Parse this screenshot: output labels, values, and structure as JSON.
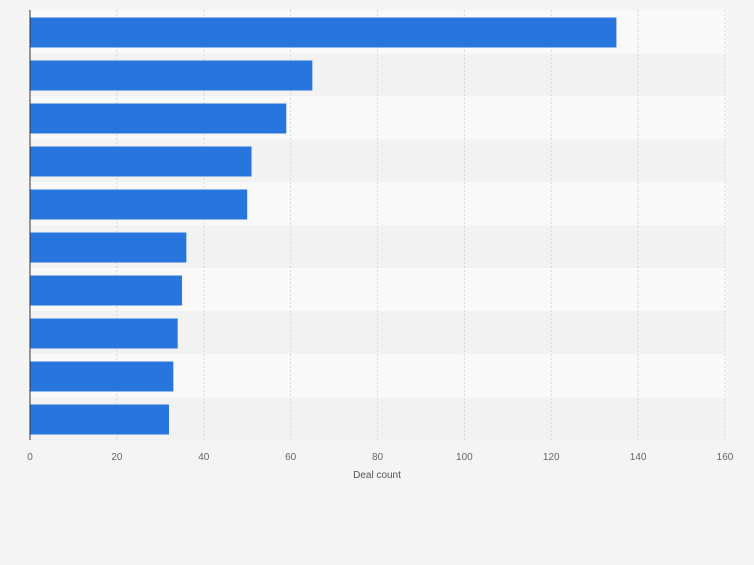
{
  "chart_data": {
    "type": "bar",
    "orientation": "horizontal",
    "title": "",
    "xlabel": "Deal count",
    "ylabel": "",
    "xlim": [
      0,
      160
    ],
    "xticks": [
      0,
      20,
      40,
      60,
      80,
      100,
      120,
      140,
      160
    ],
    "categories": [
      "",
      "",
      "",
      "",
      "",
      "",
      "",
      "",
      "",
      ""
    ],
    "values": [
      135,
      65,
      59,
      51,
      50,
      36,
      35,
      34,
      33,
      32
    ],
    "grid": true,
    "colors": {
      "bar": "#2876dd",
      "band_light": "#f9f9f9",
      "band_dark": "#f2f2f2",
      "grid": "#d9d9d9",
      "axis": "#333333",
      "tick_text": "#666666",
      "background": "#f4f4f4"
    }
  }
}
